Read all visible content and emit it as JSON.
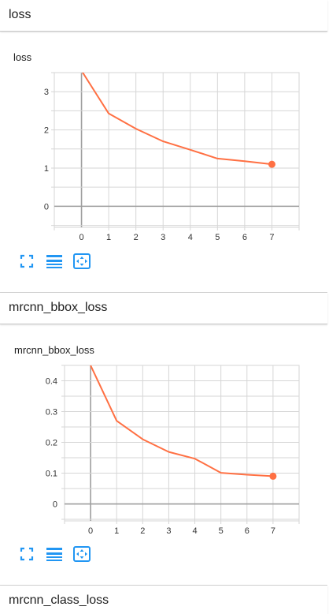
{
  "sections": [
    {
      "title": "loss"
    },
    {
      "title": "mrcnn_bbox_loss"
    },
    {
      "title": "mrcnn_class_loss"
    }
  ],
  "colors": {
    "series": "#ff7043",
    "grid": "#d6d6d6",
    "axis_zero": "#9e9e9e",
    "icon": "#2196f3"
  },
  "toolbar_icons": [
    "fullscreen-icon",
    "toggle-log-scale-icon",
    "fit-domain-icon"
  ],
  "chart_data": [
    {
      "type": "line",
      "title": "loss",
      "xlabel": "",
      "ylabel": "",
      "x": [
        0,
        1,
        2,
        3,
        4,
        5,
        6,
        7
      ],
      "series": [
        {
          "values": [
            3.55,
            2.43,
            2.03,
            1.7,
            1.48,
            1.25,
            1.18,
            1.1
          ]
        }
      ],
      "xlim": [
        -1,
        8
      ],
      "ylim": [
        -0.55,
        3.5
      ],
      "xticks": [
        0,
        1,
        2,
        3,
        4,
        5,
        6,
        7
      ],
      "yticks": [
        0,
        1,
        2,
        3
      ],
      "ytick_labels": [
        "0",
        "1",
        "2",
        "3"
      ],
      "grid": true,
      "legend": "none"
    },
    {
      "type": "line",
      "title": "mrcnn_bbox_loss",
      "xlabel": "",
      "ylabel": "",
      "x": [
        0,
        1,
        2,
        3,
        4,
        5,
        6,
        7
      ],
      "series": [
        {
          "values": [
            0.45,
            0.27,
            0.21,
            0.169,
            0.147,
            0.101,
            0.095,
            0.09
          ]
        }
      ],
      "xlim": [
        -1,
        8
      ],
      "ylim": [
        -0.055,
        0.45
      ],
      "xticks": [
        0,
        1,
        2,
        3,
        4,
        5,
        6,
        7
      ],
      "yticks": [
        0,
        0.1,
        0.2,
        0.3,
        0.4
      ],
      "ytick_labels": [
        "0",
        "0.1",
        "0.2",
        "0.3",
        "0.4"
      ],
      "grid": true,
      "legend": "none"
    }
  ]
}
